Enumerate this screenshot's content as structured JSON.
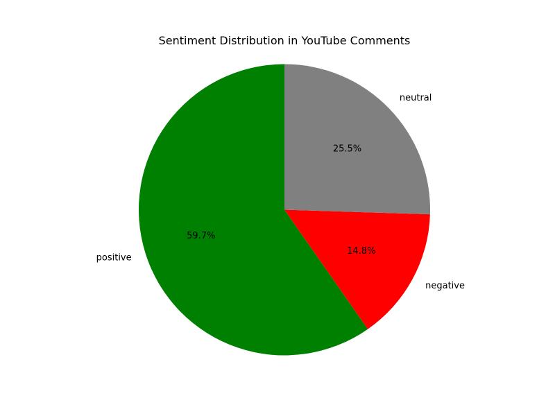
{
  "chart_data": {
    "type": "pie",
    "title": "Sentiment Distribution in YouTube Comments",
    "start_angle_deg": 90,
    "direction": "counterclockwise",
    "slices": [
      {
        "label": "positive",
        "value": 59.7,
        "percent_label": "59.7%",
        "color": "#008000"
      },
      {
        "label": "negative",
        "value": 14.8,
        "percent_label": "14.8%",
        "color": "#ff0000"
      },
      {
        "label": "neutral",
        "value": 25.5,
        "percent_label": "25.5%",
        "color": "#808080"
      }
    ],
    "legend": "none"
  }
}
